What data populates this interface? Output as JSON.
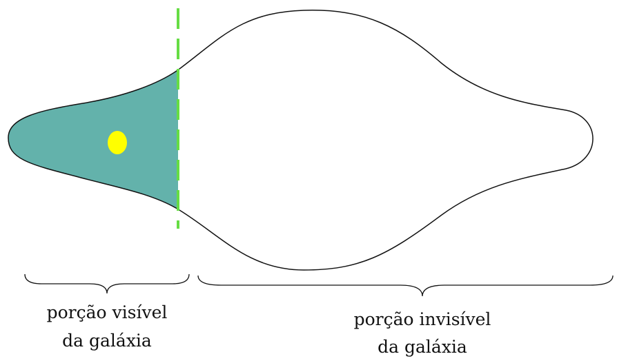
{
  "labels": [
    {
      "lines": [
        "porção visível",
        "da galáxia"
      ]
    },
    {
      "lines": [
        "porção invisível",
        "da galáxia"
      ]
    }
  ]
}
